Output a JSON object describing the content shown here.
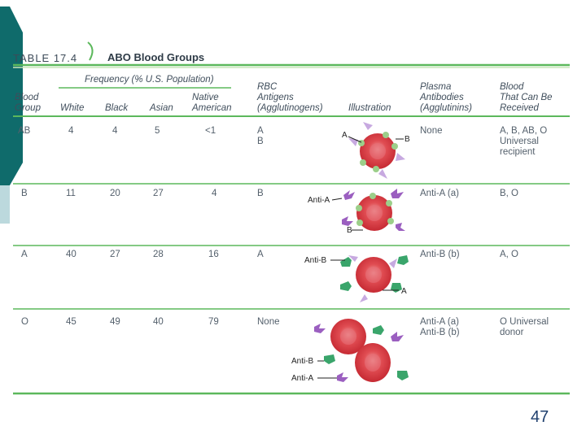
{
  "table": {
    "label": "TABLE 17.4",
    "name": "ABO Blood Groups",
    "headers": {
      "frequency": "Frequency (% U.S. Population)",
      "blood_group": [
        "Blood",
        "Group"
      ],
      "white": "White",
      "black": "Black",
      "asian": "Asian",
      "native": [
        "Native",
        "American"
      ],
      "antigens": [
        "RBC",
        "Antigens",
        "(Agglutinogens)"
      ],
      "illustration": "Illustration",
      "antibodies": [
        "Plasma",
        "Antibodies",
        "(Agglutinins)"
      ],
      "received": [
        "Blood",
        "That Can Be",
        "Received"
      ]
    },
    "rows": [
      {
        "group": "AB",
        "white": "4",
        "black": "4",
        "asian": "5",
        "native": "<1",
        "antigens": [
          "A",
          "B"
        ],
        "antibodies": [
          "None"
        ],
        "received": [
          "A, B, AB, O",
          "Universal",
          "recipient"
        ]
      },
      {
        "group": "B",
        "white": "11",
        "black": "20",
        "asian": "27",
        "native": "4",
        "antigens": [
          "B"
        ],
        "antibodies": [
          "Anti-A (a)"
        ],
        "received": [
          "B, O"
        ]
      },
      {
        "group": "A",
        "white": "40",
        "black": "27",
        "asian": "28",
        "native": "16",
        "antigens": [
          "A"
        ],
        "antibodies": [
          "Anti-B (b)"
        ],
        "received": [
          "A, O"
        ]
      },
      {
        "group": "O",
        "white": "45",
        "black": "49",
        "asian": "40",
        "native": "79",
        "antigens": [
          "None"
        ],
        "antibodies": [
          "Anti-A (a)",
          "Anti-B (b)"
        ],
        "received": [
          "O Universal",
          "donor"
        ]
      }
    ],
    "illustration_labels": {
      "ab_a": "A",
      "ab_b": "B",
      "b_anti_a": "Anti-A",
      "b_b": "B",
      "a_anti_b": "Anti-B",
      "a_a": "A",
      "o_anti_b": "Anti-B",
      "o_anti_a": "Anti-A"
    }
  },
  "page_number": "47",
  "colors": {
    "teal": "#0f6b6b",
    "green_rule": "#5cb85c",
    "rbc": "#d9363e",
    "antigen_a": "#c8e6b8",
    "antibody_a": "#9b5fc0",
    "antibody_b": "#3aa56b"
  }
}
